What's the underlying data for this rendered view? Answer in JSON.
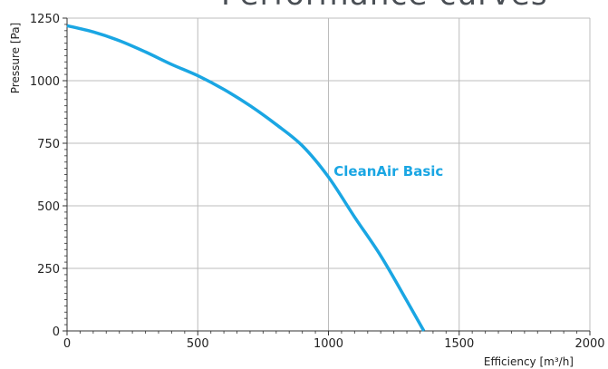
{
  "chart_data": {
    "type": "line",
    "title": "Performance curves",
    "xlabel": "Efficiency [m³/h]",
    "ylabel": "Pressure [Pa]",
    "xlim": [
      0,
      2000
    ],
    "ylim": [
      0,
      1250
    ],
    "xticks": [
      0,
      500,
      1000,
      1500,
      2000
    ],
    "yticks": [
      0,
      250,
      500,
      750,
      1000,
      1250
    ],
    "grid": true,
    "series": [
      {
        "name": "CleanAir Basic",
        "color": "#1aa6e3",
        "x": [
          0,
          100,
          200,
          300,
          400,
          500,
          600,
          700,
          800,
          900,
          1000,
          1100,
          1200,
          1300,
          1365
        ],
        "y": [
          1220,
          1195,
          1160,
          1115,
          1065,
          1020,
          965,
          900,
          825,
          740,
          615,
          455,
          300,
          120,
          0
        ]
      }
    ]
  }
}
